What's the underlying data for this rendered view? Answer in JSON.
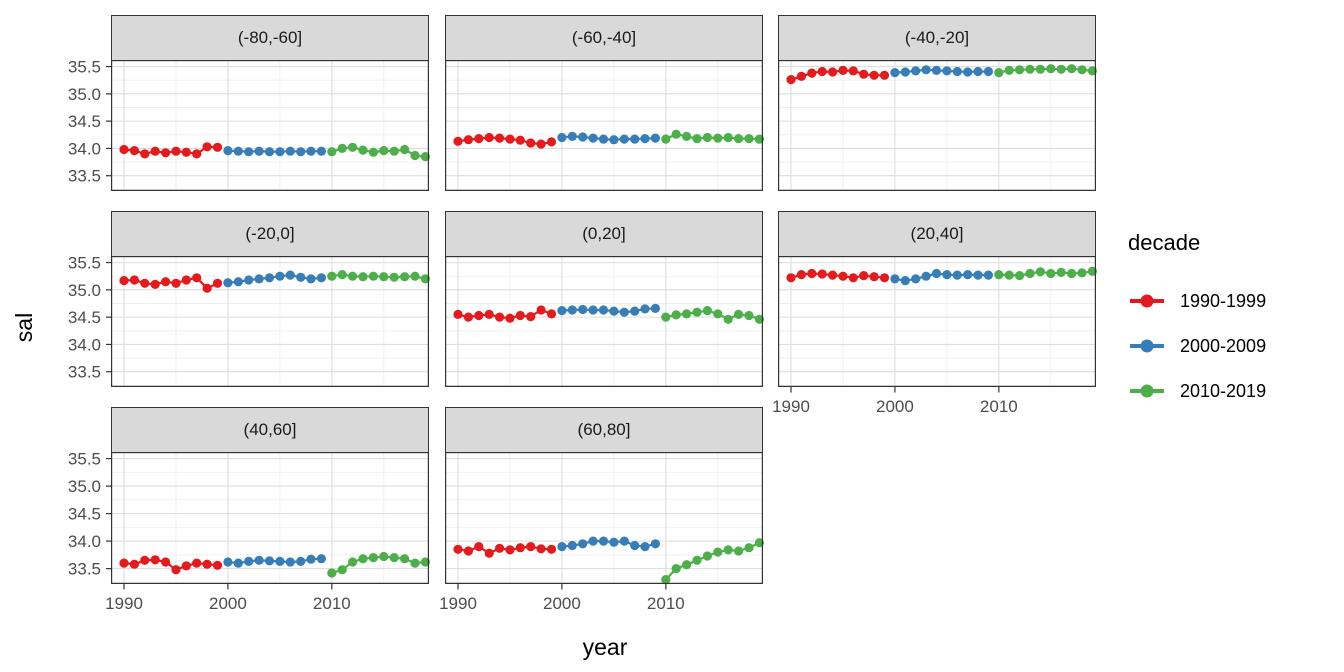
{
  "chart_data": {
    "type": "scatter",
    "title": "",
    "xlabel": "year",
    "ylabel": "sal",
    "grid": true,
    "legend": {
      "title": "decade",
      "position": "right"
    },
    "x_ticks": [
      1990,
      2000,
      2010
    ],
    "x_tick_labels": [
      "1990",
      "2000",
      "2010"
    ],
    "x_minor": [
      1995,
      2005,
      2015
    ],
    "y_ticks": [
      35.5,
      35.0,
      34.5,
      34.0,
      33.5
    ],
    "y_tick_labels": [
      "35.5",
      "35.0",
      "34.5",
      "34.0",
      "33.5"
    ],
    "y_minor": [
      35.25,
      34.75,
      34.25,
      33.75,
      33.25
    ],
    "x_range": [
      1988.75,
      2019.35
    ],
    "y_range": [
      33.22,
      35.62
    ],
    "colors": {
      "strip_fill": "#D9D9D9",
      "panel_border": "#333333",
      "grid_major": "#DEDEDE",
      "grid_minor": "#EFEFEF",
      "tick_text": "#4D4D4D"
    },
    "series": [
      {
        "name": "1990-1999",
        "color": "#E41A1C",
        "years": [
          1990,
          1991,
          1992,
          1993,
          1994,
          1995,
          1996,
          1997,
          1998,
          1999
        ]
      },
      {
        "name": "2000-2009",
        "color": "#377EB8",
        "years": [
          2000,
          2001,
          2002,
          2003,
          2004,
          2005,
          2006,
          2007,
          2008,
          2009
        ]
      },
      {
        "name": "2010-2019",
        "color": "#4DAF4A",
        "years": [
          2010,
          2011,
          2012,
          2013,
          2014,
          2015,
          2016,
          2017,
          2018,
          2019
        ]
      }
    ],
    "facets": [
      {
        "label": "(-80,-60]",
        "series": [
          {
            "name": "1990-1999",
            "values": [
              33.98,
              33.96,
              33.9,
              33.95,
              33.92,
              33.95,
              33.93,
              33.9,
              34.03,
              34.02
            ]
          },
          {
            "name": "2000-2009",
            "values": [
              33.96,
              33.95,
              33.94,
              33.95,
              33.94,
              33.94,
              33.95,
              33.94,
              33.95,
              33.95
            ]
          },
          {
            "name": "2010-2019",
            "values": [
              33.94,
              34.0,
              34.02,
              33.97,
              33.93,
              33.96,
              33.95,
              33.98,
              33.87,
              33.85
            ]
          }
        ]
      },
      {
        "label": "(-60,-40]",
        "series": [
          {
            "name": "1990-1999",
            "values": [
              34.13,
              34.16,
              34.18,
              34.2,
              34.19,
              34.17,
              34.15,
              34.1,
              34.08,
              34.12
            ]
          },
          {
            "name": "2000-2009",
            "values": [
              34.2,
              34.22,
              34.21,
              34.19,
              34.17,
              34.16,
              34.17,
              34.17,
              34.18,
              34.19
            ]
          },
          {
            "name": "2010-2019",
            "values": [
              34.17,
              34.26,
              34.22,
              34.18,
              34.2,
              34.19,
              34.2,
              34.18,
              34.18,
              34.17
            ]
          }
        ]
      },
      {
        "label": "(-40,-20]",
        "series": [
          {
            "name": "1990-1999",
            "values": [
              35.26,
              35.32,
              35.38,
              35.41,
              35.4,
              35.43,
              35.42,
              35.36,
              35.34,
              35.34
            ]
          },
          {
            "name": "2000-2009",
            "values": [
              35.39,
              35.4,
              35.42,
              35.44,
              35.43,
              35.42,
              35.41,
              35.4,
              35.41,
              35.41
            ]
          },
          {
            "name": "2010-2019",
            "values": [
              35.39,
              35.43,
              35.44,
              35.45,
              35.45,
              35.46,
              35.45,
              35.46,
              35.44,
              35.42
            ]
          }
        ]
      },
      {
        "label": "(-20,0]",
        "series": [
          {
            "name": "1990-1999",
            "values": [
              35.17,
              35.18,
              35.12,
              35.1,
              35.15,
              35.12,
              35.18,
              35.22,
              35.03,
              35.12
            ]
          },
          {
            "name": "2000-2009",
            "values": [
              35.13,
              35.15,
              35.18,
              35.2,
              35.22,
              35.25,
              35.27,
              35.23,
              35.2,
              35.22
            ]
          },
          {
            "name": "2010-2019",
            "values": [
              35.25,
              35.28,
              35.25,
              35.24,
              35.25,
              35.24,
              35.23,
              35.24,
              35.25,
              35.2
            ]
          }
        ]
      },
      {
        "label": "(0,20]",
        "series": [
          {
            "name": "1990-1999",
            "values": [
              34.55,
              34.5,
              34.53,
              34.55,
              34.5,
              34.48,
              34.53,
              34.51,
              34.63,
              34.56
            ]
          },
          {
            "name": "2000-2009",
            "values": [
              34.62,
              34.63,
              34.64,
              34.63,
              34.63,
              34.61,
              34.59,
              34.61,
              34.65,
              34.66
            ]
          },
          {
            "name": "2010-2019",
            "values": [
              34.5,
              34.54,
              34.56,
              34.59,
              34.62,
              34.56,
              34.46,
              34.55,
              34.53,
              34.46
            ]
          }
        ]
      },
      {
        "label": "(20,40]",
        "series": [
          {
            "name": "1990-1999",
            "values": [
              35.22,
              35.28,
              35.3,
              35.29,
              35.27,
              35.25,
              35.22,
              35.26,
              35.24,
              35.22
            ]
          },
          {
            "name": "2000-2009",
            "values": [
              35.2,
              35.17,
              35.2,
              35.25,
              35.3,
              35.28,
              35.27,
              35.28,
              35.27,
              35.27
            ]
          },
          {
            "name": "2010-2019",
            "values": [
              35.28,
              35.27,
              35.26,
              35.3,
              35.33,
              35.3,
              35.32,
              35.3,
              35.31,
              35.34
            ]
          }
        ]
      },
      {
        "label": "(40,60]",
        "series": [
          {
            "name": "1990-1999",
            "values": [
              33.6,
              33.58,
              33.65,
              33.66,
              33.62,
              33.48,
              33.55,
              33.6,
              33.58,
              33.56
            ]
          },
          {
            "name": "2000-2009",
            "values": [
              33.62,
              33.6,
              33.63,
              33.65,
              33.64,
              33.63,
              33.62,
              33.63,
              33.67,
              33.68
            ]
          },
          {
            "name": "2010-2019",
            "values": [
              33.42,
              33.48,
              33.62,
              33.68,
              33.7,
              33.72,
              33.7,
              33.68,
              33.6,
              33.62
            ]
          }
        ]
      },
      {
        "label": "(60,80]",
        "series": [
          {
            "name": "1990-1999",
            "values": [
              33.85,
              33.82,
              33.9,
              33.78,
              33.87,
              33.84,
              33.88,
              33.9,
              33.86,
              33.85
            ]
          },
          {
            "name": "2000-2009",
            "values": [
              33.9,
              33.92,
              33.95,
              34.0,
              34.0,
              33.98,
              34.0,
              33.92,
              33.9,
              33.95
            ]
          },
          {
            "name": "2010-2019",
            "values": [
              33.3,
              33.5,
              33.57,
              33.65,
              33.73,
              33.8,
              33.84,
              33.82,
              33.88,
              33.97
            ]
          }
        ]
      }
    ]
  }
}
